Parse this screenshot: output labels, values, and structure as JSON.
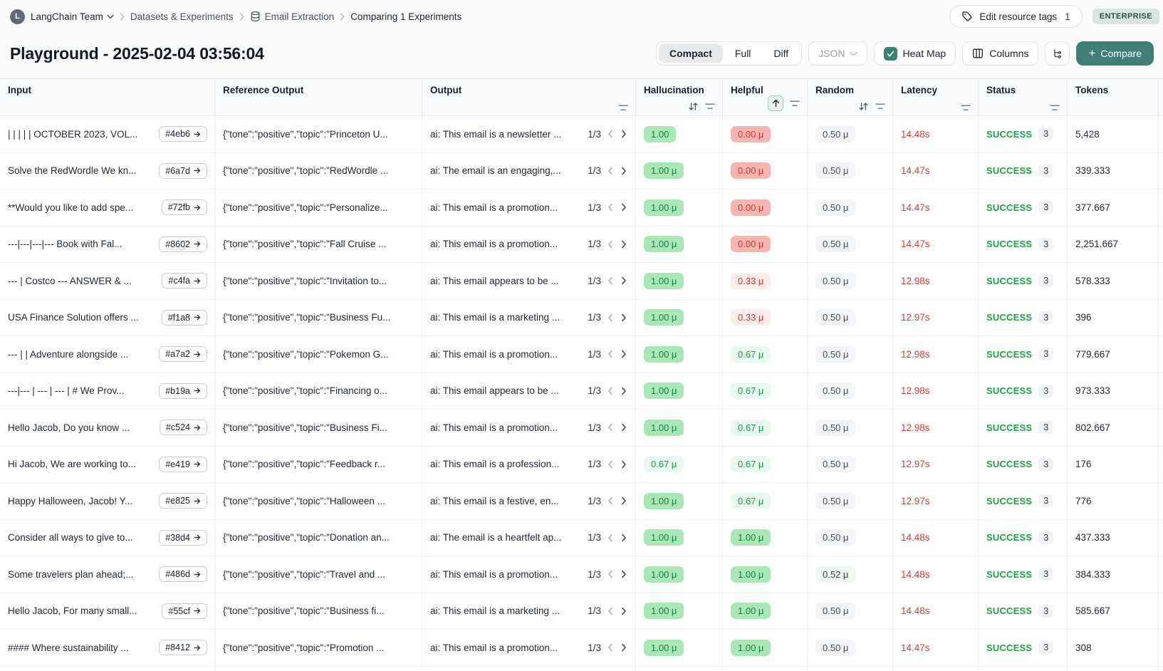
{
  "breadcrumb": {
    "team": "LangChain Team",
    "section": "Datasets & Experiments",
    "dataset": "Email Extraction",
    "current": "Comparing 1 Experiments"
  },
  "topbar": {
    "edit_tags_label": "Edit resource tags",
    "edit_tags_count": "1",
    "plan_badge": "ENTERPRISE"
  },
  "page": {
    "title": "Playground - 2025-02-04 03:56:04"
  },
  "toolbar": {
    "view_compact": "Compact",
    "view_full": "Full",
    "view_diff": "Diff",
    "format_label": "JSON",
    "heatmap_label": "Heat Map",
    "columns_label": "Columns",
    "compare_label": "Compare"
  },
  "colors": {
    "accent_teal": "#3f7e73",
    "heat_green": "#a9e8b6",
    "heat_green_light": "#e9f9ef",
    "heat_red": "#f5b6b1",
    "heat_red_light": "#fcedeb",
    "latency_red": "#d63b3b",
    "success_green": "#1aa348"
  },
  "table": {
    "columns": [
      "Input",
      "Reference Output",
      "Output",
      "Hallucination",
      "Helpful",
      "Random",
      "Latency",
      "Status",
      "Tokens"
    ],
    "rows": [
      {
        "input": "| | | | | OCTOBER 2023, VOL...",
        "id": "#4eb6",
        "ref": "{\"tone\":\"positive\",\"topic\":\"Princeton U...",
        "output": "ai: This email is a newsletter ...",
        "pager": "1/3",
        "hallucination": "1.00",
        "hallucination_tone": "green",
        "helpful": "0.00 μ",
        "helpful_tone": "red",
        "random": "0.50 μ",
        "random_tone": "gray",
        "latency": "14.48s",
        "status": "SUCCESS",
        "runs": "3",
        "tokens": "5,428"
      },
      {
        "input": "Solve the RedWordle We kn...",
        "id": "#6a7d",
        "ref": "{\"tone\":\"positive\",\"topic\":\"RedWordle ...",
        "output": "ai: The email is an engaging,...",
        "pager": "1/3",
        "hallucination": "1.00 μ",
        "hallucination_tone": "green",
        "helpful": "0.00 μ",
        "helpful_tone": "red",
        "random": "0.50 μ",
        "random_tone": "gray",
        "latency": "14.47s",
        "status": "SUCCESS",
        "runs": "3",
        "tokens": "339.333"
      },
      {
        "input": "**Would you like to add spe...",
        "id": "#72fb",
        "ref": "{\"tone\":\"positive\",\"topic\":\"Personalize...",
        "output": "ai: This email is a promotion...",
        "pager": "1/3",
        "hallucination": "1.00 μ",
        "hallucination_tone": "green",
        "helpful": "0.00 μ",
        "helpful_tone": "red",
        "random": "0.50 μ",
        "random_tone": "gray",
        "latency": "14.47s",
        "status": "SUCCESS",
        "runs": "3",
        "tokens": "377.667"
      },
      {
        "input": "---|---|---|--- Book with Fal...",
        "id": "#8602",
        "ref": "{\"tone\":\"positive\",\"topic\":\"Fall Cruise ...",
        "output": "ai: This email is a promotion...",
        "pager": "1/3",
        "hallucination": "1.00 μ",
        "hallucination_tone": "green",
        "helpful": "0.00 μ",
        "helpful_tone": "red",
        "random": "0.50 μ",
        "random_tone": "gray",
        "latency": "14.47s",
        "status": "SUCCESS",
        "runs": "3",
        "tokens": "2,251.667"
      },
      {
        "input": "--- | Costco --- ANSWER & ...",
        "id": "#c4fa",
        "ref": "{\"tone\":\"positive\",\"topic\":\"Invitation to...",
        "output": "ai: This email appears to be ...",
        "pager": "1/3",
        "hallucination": "1.00 μ",
        "hallucination_tone": "green",
        "helpful": "0.33 μ",
        "helpful_tone": "redlight",
        "random": "0.50 μ",
        "random_tone": "gray",
        "latency": "12.98s",
        "status": "SUCCESS",
        "runs": "3",
        "tokens": "578.333"
      },
      {
        "input": "USA Finance Solution offers ...",
        "id": "#f1a8",
        "ref": "{\"tone\":\"positive\",\"topic\":\"Business Fu...",
        "output": "ai: This email is a marketing ...",
        "pager": "1/3",
        "hallucination": "1.00 μ",
        "hallucination_tone": "green",
        "helpful": "0.33 μ",
        "helpful_tone": "redlight",
        "random": "0.50 μ",
        "random_tone": "gray",
        "latency": "12.97s",
        "status": "SUCCESS",
        "runs": "3",
        "tokens": "396"
      },
      {
        "input": "--- | | Adventure alongside ...",
        "id": "#a7a2",
        "ref": "{\"tone\":\"positive\",\"topic\":\"Pokemon G...",
        "output": "ai: This email is a promotion...",
        "pager": "1/3",
        "hallucination": "1.00 μ",
        "hallucination_tone": "green",
        "helpful": "0.67 μ",
        "helpful_tone": "greenlight",
        "random": "0.50 μ",
        "random_tone": "gray",
        "latency": "12.98s",
        "status": "SUCCESS",
        "runs": "3",
        "tokens": "779.667"
      },
      {
        "input": "---|--- | --- | --- | # We Prov...",
        "id": "#b19a",
        "ref": "{\"tone\":\"positive\",\"topic\":\"Financing o...",
        "output": "ai: This email appears to be ...",
        "pager": "1/3",
        "hallucination": "1.00 μ",
        "hallucination_tone": "green",
        "helpful": "0.67 μ",
        "helpful_tone": "greenlight",
        "random": "0.50 μ",
        "random_tone": "gray",
        "latency": "12.98s",
        "status": "SUCCESS",
        "runs": "3",
        "tokens": "973.333"
      },
      {
        "input": "Hello Jacob, Do you know ...",
        "id": "#c524",
        "ref": "{\"tone\":\"positive\",\"topic\":\"Business Fi...",
        "output": "ai: This email is a promotion...",
        "pager": "1/3",
        "hallucination": "1.00 μ",
        "hallucination_tone": "green",
        "helpful": "0.67 μ",
        "helpful_tone": "greenlight",
        "random": "0.50 μ",
        "random_tone": "gray",
        "latency": "12.98s",
        "status": "SUCCESS",
        "runs": "3",
        "tokens": "802.667"
      },
      {
        "input": "Hi Jacob, We are working to...",
        "id": "#e419",
        "ref": "{\"tone\":\"positive\",\"topic\":\"Feedback r...",
        "output": "ai: This email is a profession...",
        "pager": "1/3",
        "hallucination": "0.67 μ",
        "hallucination_tone": "greenlight",
        "helpful": "0.67 μ",
        "helpful_tone": "greenlight",
        "random": "0.50 μ",
        "random_tone": "gray",
        "latency": "12.97s",
        "status": "SUCCESS",
        "runs": "3",
        "tokens": "176"
      },
      {
        "input": "Happy Halloween, Jacob! Y...",
        "id": "#e825",
        "ref": "{\"tone\":\"positive\",\"topic\":\"Halloween ...",
        "output": "ai: This email is a festive, en...",
        "pager": "1/3",
        "hallucination": "1.00 μ",
        "hallucination_tone": "green",
        "helpful": "0.67 μ",
        "helpful_tone": "greenlight",
        "random": "0.50 μ",
        "random_tone": "gray",
        "latency": "12.97s",
        "status": "SUCCESS",
        "runs": "3",
        "tokens": "776"
      },
      {
        "input": "Consider all ways to give to...",
        "id": "#38d4",
        "ref": "{\"tone\":\"positive\",\"topic\":\"Donation an...",
        "output": "ai: The email is a heartfelt ap...",
        "pager": "1/3",
        "hallucination": "1.00 μ",
        "hallucination_tone": "green",
        "helpful": "1.00 μ",
        "helpful_tone": "green",
        "random": "0.50 μ",
        "random_tone": "gray",
        "latency": "14.48s",
        "status": "SUCCESS",
        "runs": "3",
        "tokens": "437.333"
      },
      {
        "input": "Some travelers plan ahead;...",
        "id": "#486d",
        "ref": "{\"tone\":\"positive\",\"topic\":\"Travel and ...",
        "output": "ai: This email is a promotion...",
        "pager": "1/3",
        "hallucination": "1.00 μ",
        "hallucination_tone": "green",
        "helpful": "1.00 μ",
        "helpful_tone": "green",
        "random": "0.52 μ",
        "random_tone": "tint",
        "latency": "14.48s",
        "status": "SUCCESS",
        "runs": "3",
        "tokens": "384.333"
      },
      {
        "input": "Hello Jacob, For many small...",
        "id": "#55cf",
        "ref": "{\"tone\":\"positive\",\"topic\":\"Business fi...",
        "output": "ai: This email is a marketing ...",
        "pager": "1/3",
        "hallucination": "1.00 μ",
        "hallucination_tone": "green",
        "helpful": "1.00 μ",
        "helpful_tone": "green",
        "random": "0.50 μ",
        "random_tone": "gray",
        "latency": "14.48s",
        "status": "SUCCESS",
        "runs": "3",
        "tokens": "585.667"
      },
      {
        "input": "#### Where sustainability ...",
        "id": "#8412",
        "ref": "{\"tone\":\"positive\",\"topic\":\"Promotion ...",
        "output": "ai: This email is a promotion...",
        "pager": "1/3",
        "hallucination": "1.00 μ",
        "hallucination_tone": "green",
        "helpful": "1.00 μ",
        "helpful_tone": "green",
        "random": "0.50 μ",
        "random_tone": "gray",
        "latency": "14.47s",
        "status": "SUCCESS",
        "runs": "3",
        "tokens": "308"
      }
    ]
  }
}
